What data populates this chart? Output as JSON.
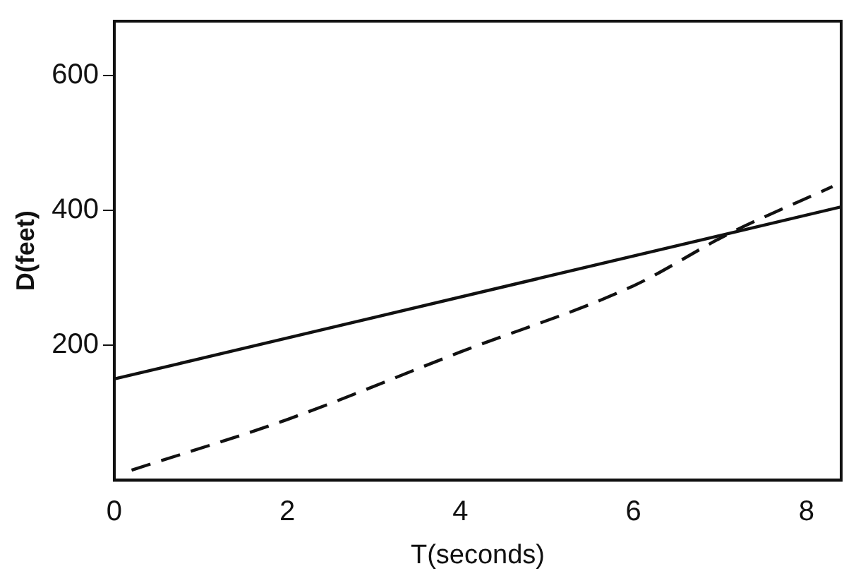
{
  "chart_data": {
    "type": "line",
    "xlabel": "T(seconds)",
    "ylabel": "D(feet)",
    "xlim": [
      0,
      8.4
    ],
    "xticks": [
      0,
      2,
      4,
      6,
      8
    ],
    "ylim": [
      0,
      680
    ],
    "yticks": [
      200,
      400,
      600
    ],
    "grid": false,
    "legend": false,
    "marker": "none",
    "series": [
      {
        "color": "#111111",
        "line_style": "solid",
        "x": [
          0,
          8.4
        ],
        "values": [
          150,
          405
        ]
      },
      {
        "color": "#111111",
        "line_style": "dashed",
        "x": [
          0.2,
          2,
          4,
          6,
          7.1,
          8.3
        ],
        "values": [
          15,
          90,
          190,
          288,
          365,
          435
        ]
      }
    ]
  }
}
